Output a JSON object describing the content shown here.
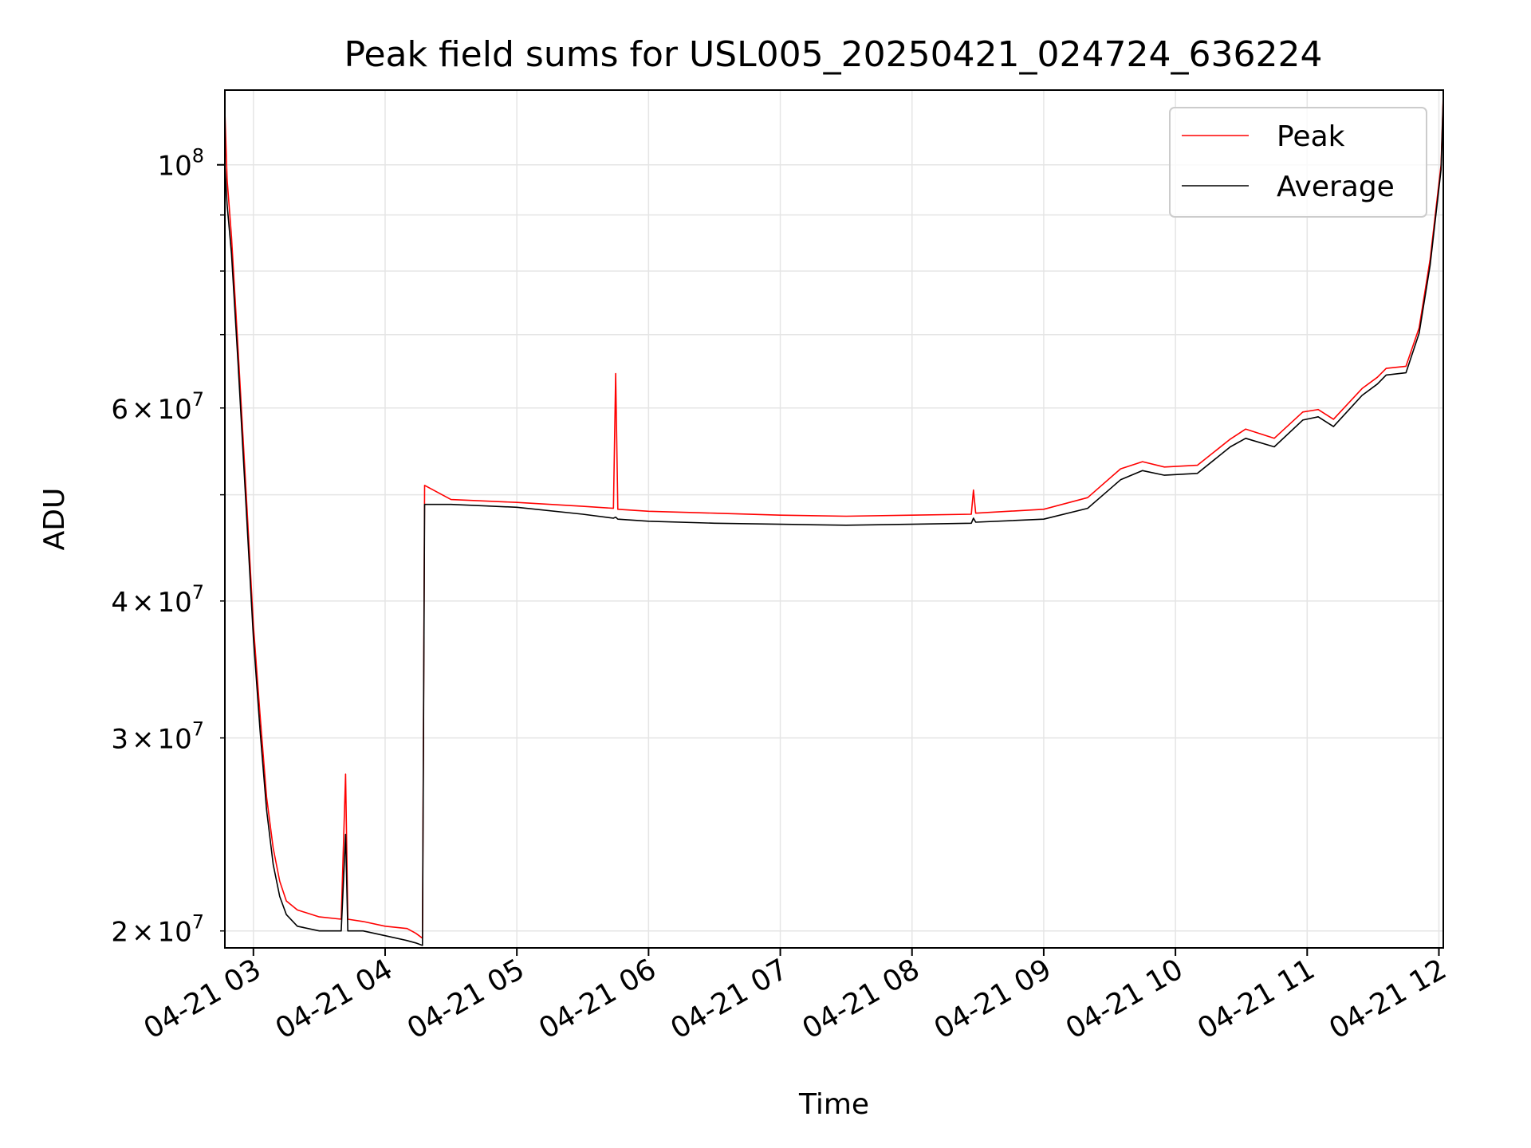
{
  "chart_data": {
    "type": "line",
    "title": "Peak field sums for USL005_20250421_024724_636224",
    "xlabel": "Time",
    "ylabel": "ADU",
    "y_scale": "log",
    "ylim": [
      19300000,
      117000000
    ],
    "xlim": [
      "2025-04-21T02:47",
      "2025-04-21T12:02"
    ],
    "x_ticks": [
      {
        "value": "2025-04-21T03:00",
        "label": "04-21 03"
      },
      {
        "value": "2025-04-21T04:00",
        "label": "04-21 04"
      },
      {
        "value": "2025-04-21T05:00",
        "label": "04-21 05"
      },
      {
        "value": "2025-04-21T06:00",
        "label": "04-21 06"
      },
      {
        "value": "2025-04-21T07:00",
        "label": "04-21 07"
      },
      {
        "value": "2025-04-21T08:00",
        "label": "04-21 08"
      },
      {
        "value": "2025-04-21T09:00",
        "label": "04-21 09"
      },
      {
        "value": "2025-04-21T10:00",
        "label": "04-21 10"
      },
      {
        "value": "2025-04-21T11:00",
        "label": "04-21 11"
      },
      {
        "value": "2025-04-21T12:00",
        "label": "04-21 12"
      }
    ],
    "y_ticks_major": [
      {
        "value": 100000000,
        "base": "10",
        "exp": "8"
      }
    ],
    "y_ticks_minor": [
      {
        "value": 20000000,
        "mant": "2",
        "base": "10",
        "exp": "7"
      },
      {
        "value": 30000000,
        "mant": "3",
        "base": "10",
        "exp": "7"
      },
      {
        "value": 40000000,
        "mant": "4",
        "base": "10",
        "exp": "7"
      },
      {
        "value": 50000000
      },
      {
        "value": 60000000,
        "mant": "6",
        "base": "10",
        "exp": "7"
      },
      {
        "value": 70000000
      },
      {
        "value": 80000000
      },
      {
        "value": 90000000
      }
    ],
    "times_sign": "×",
    "grid": true,
    "legend_position": "upper right",
    "series": [
      {
        "name": "Peak",
        "color": "#ff0000",
        "points": [
          [
            "2025-04-21T02:47",
            112000000
          ],
          [
            "2025-04-21T02:48",
            97000000
          ],
          [
            "2025-04-21T02:50",
            86000000
          ],
          [
            "2025-04-21T02:53",
            68000000
          ],
          [
            "2025-04-21T02:57",
            49000000
          ],
          [
            "2025-04-21T03:00",
            38000000
          ],
          [
            "2025-04-21T03:03",
            31500000
          ],
          [
            "2025-04-21T03:06",
            26500000
          ],
          [
            "2025-04-21T03:09",
            23800000
          ],
          [
            "2025-04-21T03:12",
            22200000
          ],
          [
            "2025-04-21T03:15",
            21300000
          ],
          [
            "2025-04-21T03:20",
            20900000
          ],
          [
            "2025-04-21T03:30",
            20600000
          ],
          [
            "2025-04-21T03:40",
            20500000
          ],
          [
            "2025-04-21T03:42",
            27800000
          ],
          [
            "2025-04-21T03:43",
            20500000
          ],
          [
            "2025-04-21T03:50",
            20400000
          ],
          [
            "2025-04-21T04:00",
            20200000
          ],
          [
            "2025-04-21T04:10",
            20100000
          ],
          [
            "2025-04-21T04:14",
            19900000
          ],
          [
            "2025-04-21T04:17",
            19700000
          ],
          [
            "2025-04-21T04:18",
            51000000
          ],
          [
            "2025-04-21T04:30",
            49500000
          ],
          [
            "2025-04-21T05:00",
            49200000
          ],
          [
            "2025-04-21T05:30",
            48800000
          ],
          [
            "2025-04-21T05:44",
            48600000
          ],
          [
            "2025-04-21T05:45",
            64500000
          ],
          [
            "2025-04-21T05:46",
            48500000
          ],
          [
            "2025-04-21T06:00",
            48300000
          ],
          [
            "2025-04-21T06:30",
            48100000
          ],
          [
            "2025-04-21T07:00",
            47900000
          ],
          [
            "2025-04-21T07:30",
            47800000
          ],
          [
            "2025-04-21T08:00",
            47900000
          ],
          [
            "2025-04-21T08:27",
            48000000
          ],
          [
            "2025-04-21T08:28",
            50500000
          ],
          [
            "2025-04-21T08:29",
            48100000
          ],
          [
            "2025-04-21T09:00",
            48500000
          ],
          [
            "2025-04-21T09:20",
            49700000
          ],
          [
            "2025-04-21T09:35",
            52800000
          ],
          [
            "2025-04-21T09:45",
            53600000
          ],
          [
            "2025-04-21T09:55",
            53000000
          ],
          [
            "2025-04-21T10:10",
            53200000
          ],
          [
            "2025-04-21T10:25",
            56200000
          ],
          [
            "2025-04-21T10:32",
            57400000
          ],
          [
            "2025-04-21T10:45",
            56300000
          ],
          [
            "2025-04-21T10:58",
            59500000
          ],
          [
            "2025-04-21T11:05",
            59800000
          ],
          [
            "2025-04-21T11:12",
            58600000
          ],
          [
            "2025-04-21T11:25",
            62500000
          ],
          [
            "2025-04-21T11:32",
            64000000
          ],
          [
            "2025-04-21T11:36",
            65200000
          ],
          [
            "2025-04-21T11:45",
            65500000
          ],
          [
            "2025-04-21T11:51",
            71000000
          ],
          [
            "2025-04-21T11:56",
            82000000
          ],
          [
            "2025-04-21T12:01",
            100000000
          ],
          [
            "2025-04-21T12:02",
            116000000
          ]
        ]
      },
      {
        "name": "Average",
        "color": "#000000",
        "points": [
          [
            "2025-04-21T02:47",
            100000000
          ],
          [
            "2025-04-21T02:48",
            92000000
          ],
          [
            "2025-04-21T02:50",
            83000000
          ],
          [
            "2025-04-21T02:53",
            66000000
          ],
          [
            "2025-04-21T02:57",
            47500000
          ],
          [
            "2025-04-21T03:00",
            37000000
          ],
          [
            "2025-04-21T03:03",
            30500000
          ],
          [
            "2025-04-21T03:06",
            25800000
          ],
          [
            "2025-04-21T03:09",
            23000000
          ],
          [
            "2025-04-21T03:12",
            21500000
          ],
          [
            "2025-04-21T03:15",
            20700000
          ],
          [
            "2025-04-21T03:20",
            20200000
          ],
          [
            "2025-04-21T03:30",
            20000000
          ],
          [
            "2025-04-21T03:40",
            20000000
          ],
          [
            "2025-04-21T03:42",
            24500000
          ],
          [
            "2025-04-21T03:43",
            20000000
          ],
          [
            "2025-04-21T03:50",
            20000000
          ],
          [
            "2025-04-21T04:00",
            19800000
          ],
          [
            "2025-04-21T04:10",
            19600000
          ],
          [
            "2025-04-21T04:14",
            19500000
          ],
          [
            "2025-04-21T04:17",
            19400000
          ],
          [
            "2025-04-21T04:18",
            49000000
          ],
          [
            "2025-04-21T04:30",
            49000000
          ],
          [
            "2025-04-21T05:00",
            48700000
          ],
          [
            "2025-04-21T05:30",
            48000000
          ],
          [
            "2025-04-21T05:44",
            47600000
          ],
          [
            "2025-04-21T05:45",
            47700000
          ],
          [
            "2025-04-21T05:46",
            47500000
          ],
          [
            "2025-04-21T06:00",
            47300000
          ],
          [
            "2025-04-21T06:30",
            47100000
          ],
          [
            "2025-04-21T07:00",
            47000000
          ],
          [
            "2025-04-21T07:30",
            46900000
          ],
          [
            "2025-04-21T08:00",
            47000000
          ],
          [
            "2025-04-21T08:27",
            47100000
          ],
          [
            "2025-04-21T08:28",
            47600000
          ],
          [
            "2025-04-21T08:29",
            47200000
          ],
          [
            "2025-04-21T09:00",
            47500000
          ],
          [
            "2025-04-21T09:20",
            48600000
          ],
          [
            "2025-04-21T09:35",
            51600000
          ],
          [
            "2025-04-21T09:45",
            52600000
          ],
          [
            "2025-04-21T09:55",
            52100000
          ],
          [
            "2025-04-21T10:10",
            52300000
          ],
          [
            "2025-04-21T10:25",
            55300000
          ],
          [
            "2025-04-21T10:32",
            56300000
          ],
          [
            "2025-04-21T10:45",
            55300000
          ],
          [
            "2025-04-21T10:58",
            58500000
          ],
          [
            "2025-04-21T11:05",
            58900000
          ],
          [
            "2025-04-21T11:12",
            57700000
          ],
          [
            "2025-04-21T11:25",
            61600000
          ],
          [
            "2025-04-21T11:32",
            63100000
          ],
          [
            "2025-04-21T11:36",
            64300000
          ],
          [
            "2025-04-21T11:45",
            64600000
          ],
          [
            "2025-04-21T11:51",
            70200000
          ],
          [
            "2025-04-21T11:56",
            81000000
          ],
          [
            "2025-04-21T12:01",
            99000000
          ],
          [
            "2025-04-21T12:02",
            115000000
          ]
        ]
      }
    ]
  }
}
